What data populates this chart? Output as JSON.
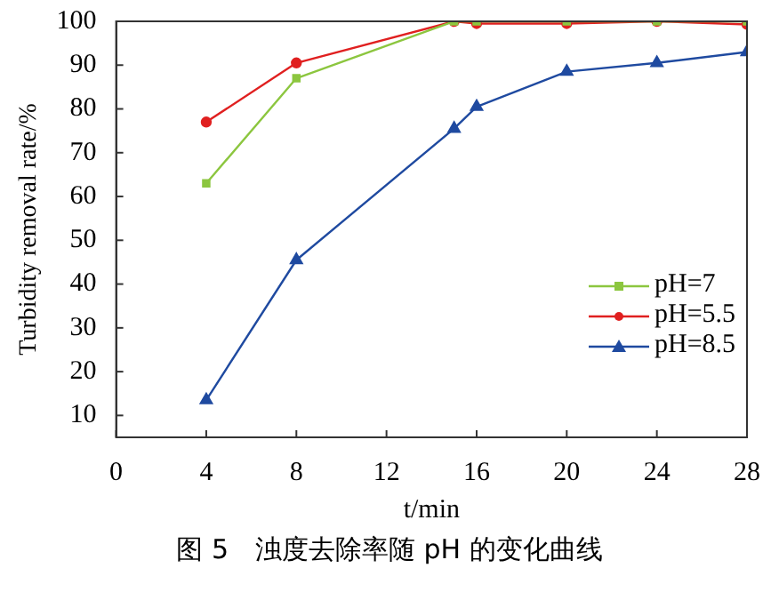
{
  "chart_data": {
    "type": "line",
    "title": "图 5　浊度去除率随 pH 的变化曲线",
    "xlabel": "t/min",
    "ylabel": "Turbidity removal rate/%",
    "x": [
      4,
      8,
      15,
      16,
      20,
      24,
      28
    ],
    "series": [
      {
        "name": "pH=7",
        "color": "#8cc63f",
        "marker": "square",
        "values": [
          63,
          87,
          100,
          100,
          100,
          100,
          100
        ]
      },
      {
        "name": "pH=5.5",
        "color": "#e02020",
        "marker": "circle",
        "values": [
          77,
          90.5,
          100,
          99.5,
          99.5,
          100,
          99.3
        ]
      },
      {
        "name": "pH=8.5",
        "color": "#1f4aa0",
        "marker": "triangle",
        "values": [
          13.5,
          45.5,
          75.5,
          80.5,
          88.5,
          90.5,
          93
        ]
      }
    ],
    "xlim": [
      0,
      28
    ],
    "xticks": [
      0,
      4,
      8,
      12,
      16,
      20,
      24,
      28
    ],
    "ylim": [
      5,
      100
    ],
    "yticks": [
      10,
      20,
      30,
      40,
      50,
      60,
      70,
      80,
      90,
      100
    ],
    "grid": false,
    "legend": "right",
    "line_style": "solid"
  }
}
